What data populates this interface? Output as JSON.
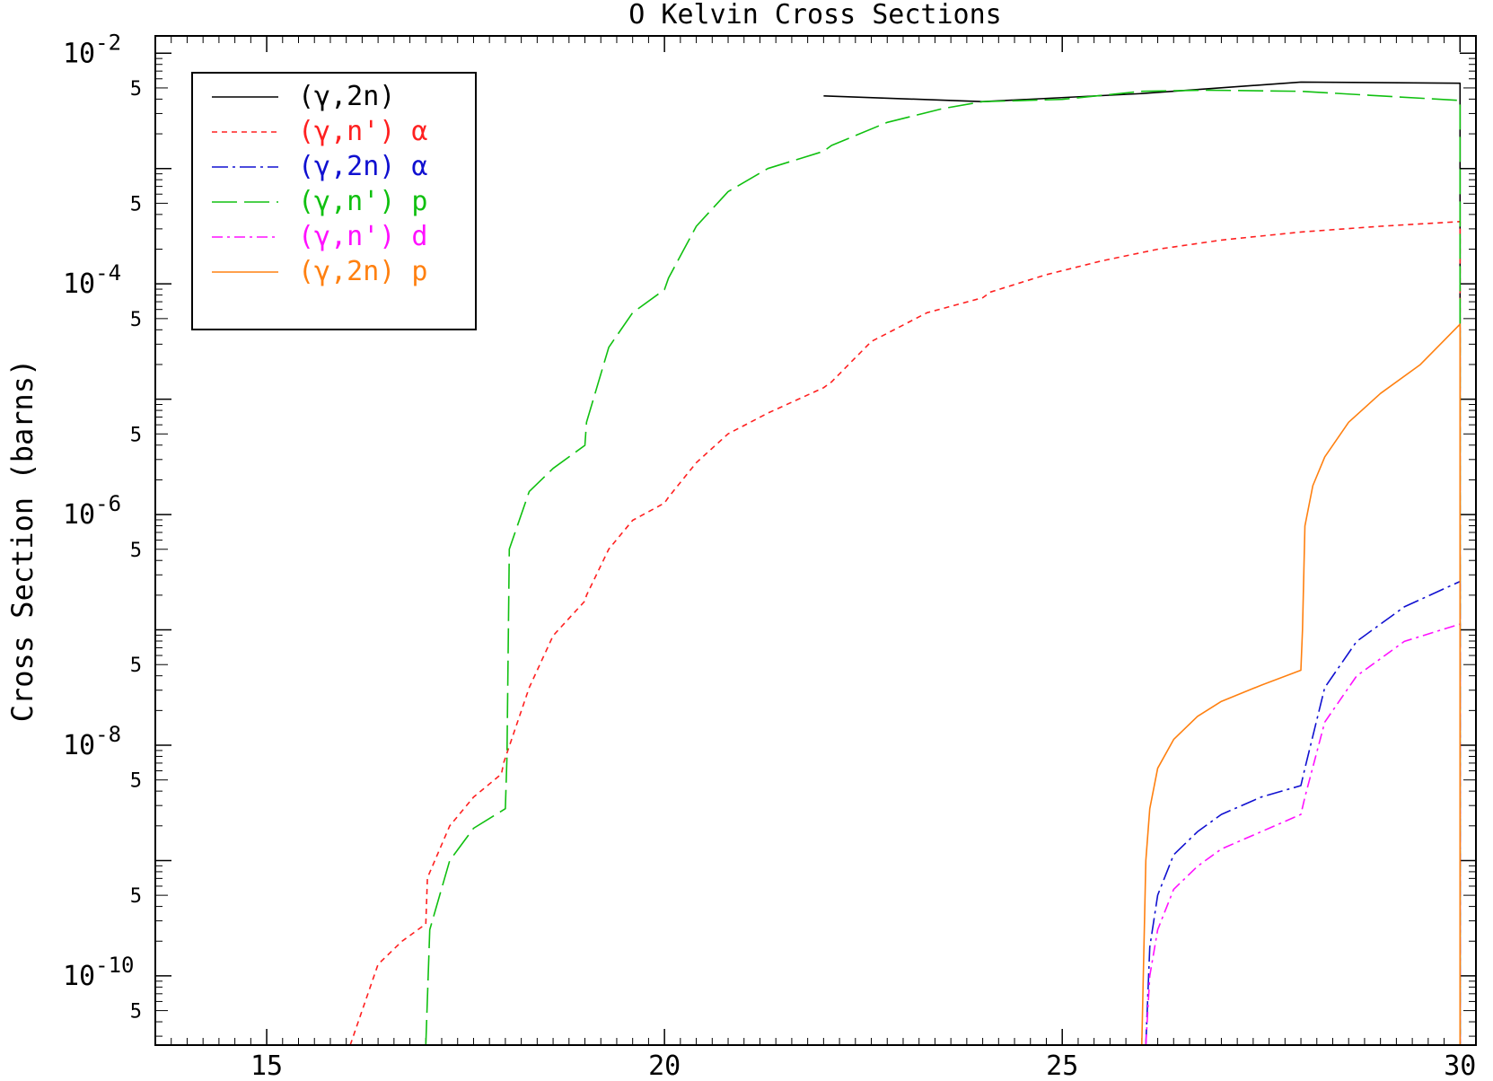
{
  "chart_data": {
    "type": "line",
    "title": "O Kelvin Cross Sections",
    "xlabel": "",
    "ylabel": "Cross Section (barns)",
    "xlim": [
      13.6,
      30.2
    ],
    "ylim_log10": [
      -10.6,
      -1.85
    ],
    "yscale": "log",
    "x_ticks": [
      15,
      20,
      25,
      30
    ],
    "y_major_ticks": [
      {
        "exp": -10,
        "label": "10",
        "sup": "-10"
      },
      {
        "exp": -8,
        "label": "10",
        "sup": "-8"
      },
      {
        "exp": -6,
        "label": "10",
        "sup": "-6"
      },
      {
        "exp": -4,
        "label": "10",
        "sup": "-4"
      },
      {
        "exp": -2,
        "label": "10",
        "sup": "-2"
      }
    ],
    "y_minor_label": "5",
    "grid": false,
    "legend_position": "top-left",
    "series": [
      {
        "name": "(γ,2n)",
        "color": "#000000",
        "dash": "",
        "x": [
          22,
          24,
          26,
          28,
          30,
          30
        ],
        "log10_y": [
          -2.37,
          -2.42,
          -2.35,
          -2.25,
          -2.26,
          -11
        ]
      },
      {
        "name": "(γ,n') α",
        "color": "#ff2020",
        "dash": "6,5",
        "x": [
          16.05,
          16.4,
          16.7,
          17.0,
          17.02,
          17.3,
          17.6,
          17.95,
          17.98,
          18.3,
          18.6,
          19.0,
          19.02,
          19.3,
          19.6,
          20.0,
          20.05,
          20.4,
          20.8,
          21.3,
          22.0,
          22.1,
          22.6,
          23.3,
          24.0,
          24.1,
          24.8,
          25.5,
          26.2,
          27.0,
          28.0,
          29.0,
          30.0,
          30.0
        ],
        "log10_y": [
          -10.6,
          -9.9,
          -9.7,
          -9.55,
          -9.15,
          -8.7,
          -8.45,
          -8.25,
          -8.15,
          -7.5,
          -7.05,
          -6.75,
          -6.7,
          -6.3,
          -6.05,
          -5.9,
          -5.85,
          -5.55,
          -5.3,
          -5.12,
          -4.9,
          -4.85,
          -4.5,
          -4.25,
          -4.12,
          -4.07,
          -3.92,
          -3.8,
          -3.7,
          -3.62,
          -3.55,
          -3.5,
          -3.46,
          -11
        ]
      },
      {
        "name": "(γ,2n) α",
        "color": "#1010d0",
        "dash": "18,5,3,5",
        "x": [
          26.05,
          26.1,
          26.2,
          26.4,
          26.7,
          27.0,
          27.5,
          28.0,
          28.05,
          28.3,
          28.7,
          29.3,
          30.0,
          30.0
        ],
        "log10_y": [
          -10.6,
          -9.75,
          -9.3,
          -8.95,
          -8.75,
          -8.6,
          -8.45,
          -8.35,
          -8.2,
          -7.5,
          -7.1,
          -6.8,
          -6.58,
          -11
        ]
      },
      {
        "name": "(γ,n') p",
        "color": "#10c010",
        "dash": "28,8",
        "x": [
          17.0,
          17.05,
          17.3,
          17.6,
          18.0,
          18.02,
          18.05,
          18.3,
          18.6,
          19.0,
          19.02,
          19.3,
          19.6,
          20.0,
          20.05,
          20.4,
          20.8,
          21.3,
          22.0,
          22.1,
          22.8,
          23.5,
          24.0,
          25.0,
          26.0,
          26.8,
          28.0,
          29.0,
          30.0,
          30.0
        ],
        "log10_y": [
          -10.6,
          -9.6,
          -9.0,
          -8.72,
          -8.55,
          -8.1,
          -6.3,
          -5.8,
          -5.6,
          -5.4,
          -5.2,
          -4.55,
          -4.25,
          -4.05,
          -3.95,
          -3.5,
          -3.2,
          -3.0,
          -2.85,
          -2.8,
          -2.6,
          -2.48,
          -2.42,
          -2.4,
          -2.33,
          -2.32,
          -2.33,
          -2.37,
          -2.41,
          -11
        ]
      },
      {
        "name": "(γ,n') d",
        "color": "#ff10ff",
        "dash": "12,5,3,5",
        "x": [
          26.05,
          26.1,
          26.2,
          26.4,
          26.7,
          27.0,
          27.5,
          28.0,
          28.05,
          28.3,
          28.7,
          29.3,
          30.0,
          30.0
        ],
        "log10_y": [
          -10.6,
          -10.0,
          -9.6,
          -9.25,
          -9.05,
          -8.9,
          -8.75,
          -8.6,
          -8.45,
          -7.8,
          -7.4,
          -7.1,
          -6.95,
          -11
        ]
      },
      {
        "name": "(γ,2n) p",
        "color": "#ff8010",
        "dash": "",
        "x": [
          26.0,
          26.05,
          26.1,
          26.2,
          26.4,
          26.7,
          27.0,
          27.5,
          28.0,
          28.02,
          28.05,
          28.15,
          28.3,
          28.6,
          29.0,
          29.5,
          30.0,
          30.0
        ],
        "log10_y": [
          -10.6,
          -9.0,
          -8.55,
          -8.2,
          -7.95,
          -7.75,
          -7.62,
          -7.48,
          -7.35,
          -7.0,
          -6.1,
          -5.75,
          -5.5,
          -5.2,
          -4.95,
          -4.7,
          -4.35,
          -11
        ]
      }
    ]
  }
}
